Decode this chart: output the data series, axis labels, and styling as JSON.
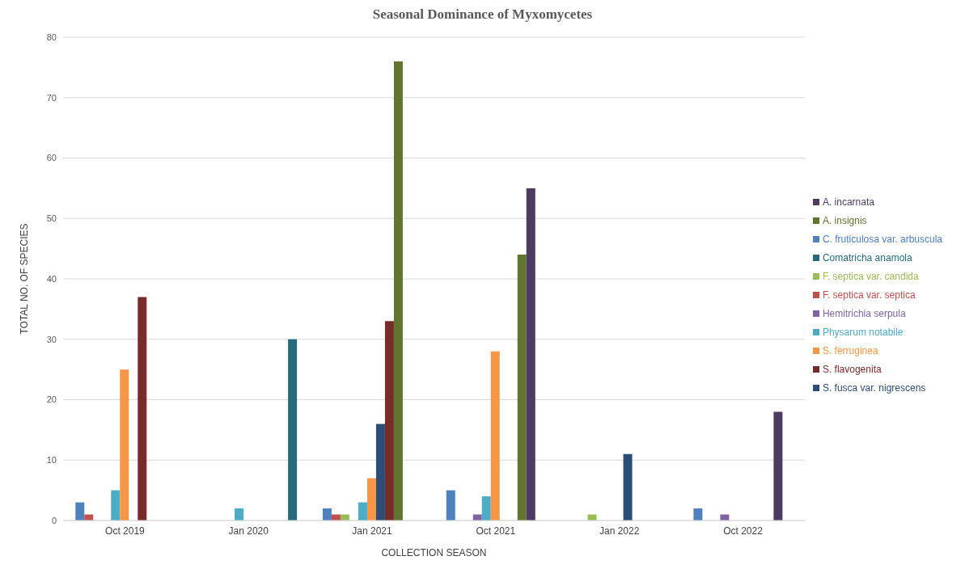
{
  "chart_data": {
    "type": "bar",
    "title": "Seasonal Dominance of Myxomycetes",
    "xlabel": "COLLECTION SEASON",
    "ylabel": "TOTAL NO. OF SPECIES",
    "categories": [
      "Oct 2019",
      "Jan 2020",
      "Jan 2021",
      "Oct 2021",
      "Jan 2022",
      "Oct 2022"
    ],
    "series": [
      {
        "name": "C. fruticulosa var. arbuscula",
        "color": "#4f81bd",
        "values": [
          3,
          0,
          2,
          5,
          0,
          2
        ]
      },
      {
        "name": "F. septica var. septica",
        "color": "#c0504d",
        "values": [
          1,
          0,
          1,
          0,
          0,
          0
        ]
      },
      {
        "name": "F. septica var. candida",
        "color": "#9bbb59",
        "values": [
          0,
          0,
          1,
          0,
          1,
          0
        ]
      },
      {
        "name": "Hemitrichia serpula",
        "color": "#8064a2",
        "values": [
          0,
          0,
          0,
          1,
          0,
          1
        ]
      },
      {
        "name": "Physarum notabile",
        "color": "#4bacc6",
        "values": [
          5,
          2,
          3,
          4,
          0,
          0
        ]
      },
      {
        "name": "S. ferruginea",
        "color": "#f79646",
        "values": [
          25,
          0,
          7,
          28,
          0,
          0
        ]
      },
      {
        "name": "S. fusca var. nigrescens",
        "color": "#2c4d75",
        "values": [
          0,
          0,
          16,
          0,
          11,
          0
        ]
      },
      {
        "name": "S. flavogenita",
        "color": "#772c2a",
        "values": [
          37,
          0,
          33,
          0,
          0,
          0
        ]
      },
      {
        "name": "A. insignis",
        "color": "#5f7530",
        "values": [
          0,
          0,
          76,
          44,
          0,
          0
        ]
      },
      {
        "name": "A. incarnata",
        "color": "#4d3b62",
        "values": [
          0,
          0,
          0,
          55,
          0,
          18
        ]
      },
      {
        "name": "Comatricha anamola",
        "color": "#276a7c",
        "values": [
          0,
          30,
          0,
          0,
          0,
          0
        ]
      }
    ],
    "ylim": [
      0,
      80
    ],
    "yticks": [
      0,
      10,
      20,
      30,
      40,
      50,
      60,
      70,
      80
    ],
    "grid": "y",
    "legend": "right"
  }
}
